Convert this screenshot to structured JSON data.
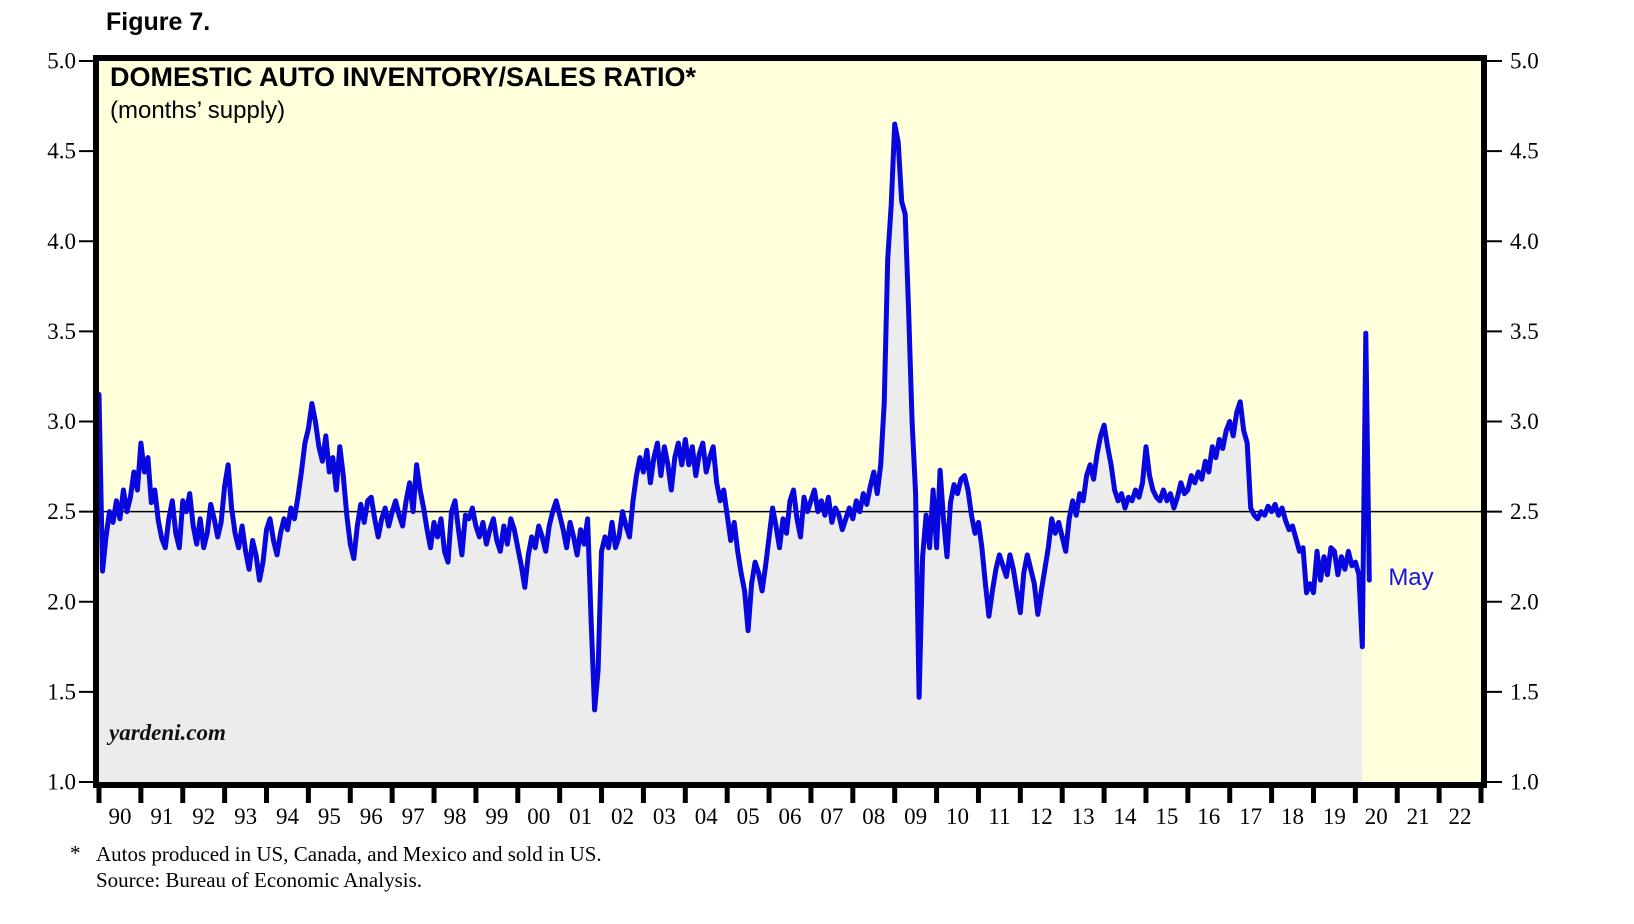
{
  "figure_label": "Figure 7.",
  "header": {
    "title": "DOMESTIC AUTO INVENTORY/SALES RATIO*",
    "subtitle": "(months’ supply)"
  },
  "watermark": "yardeni.com",
  "footnote": {
    "star": "*",
    "line1": "Autos produced in US, Canada, and Mexico and sold in US.",
    "line2": "Source: Bureau of Economic Analysis."
  },
  "colors": {
    "plot_background": "#FFFFDC",
    "area_fill": "#ECECEC",
    "line": "#0707DE",
    "annotation_text": "#1414E6",
    "axis_and_text": "#000000",
    "reference_line": "#000000"
  },
  "chart_data": {
    "type": "line",
    "title": "DOMESTIC AUTO INVENTORY/SALES RATIO*",
    "ylabel": "(months’ supply)",
    "ylim": [
      1.0,
      5.0
    ],
    "yticks": [
      5.0,
      4.5,
      4.0,
      3.5,
      3.0,
      2.5,
      2.0,
      1.5,
      1.0
    ],
    "ytick_labels": [
      "5.0",
      "4.5",
      "4.0",
      "3.5",
      "3.0",
      "2.5",
      "2.0",
      "1.5",
      "1.0"
    ],
    "x_tick_labels": [
      "90",
      "91",
      "92",
      "93",
      "94",
      "95",
      "96",
      "97",
      "98",
      "99",
      "00",
      "01",
      "02",
      "03",
      "04",
      "05",
      "06",
      "07",
      "08",
      "09",
      "10",
      "11",
      "12",
      "13",
      "14",
      "15",
      "16",
      "17",
      "18",
      "19",
      "20",
      "21",
      "22"
    ],
    "x_range_note": "monthly data Jan 1990 - May 2020; axis extends through 2022",
    "reference_line_y": 2.5,
    "grid": "off",
    "legend": "none",
    "annotation": {
      "text": "May",
      "value": 2.12
    },
    "fill_end_index": 362,
    "series": [
      {
        "name": "Domestic auto inventory/sales ratio",
        "start_year": 1990,
        "start_month": 1,
        "monthly_values": [
          3.15,
          2.17,
          2.36,
          2.5,
          2.44,
          2.56,
          2.46,
          2.62,
          2.5,
          2.58,
          2.72,
          2.62,
          2.88,
          2.72,
          2.8,
          2.55,
          2.62,
          2.45,
          2.35,
          2.3,
          2.46,
          2.56,
          2.38,
          2.3,
          2.56,
          2.5,
          2.6,
          2.42,
          2.32,
          2.46,
          2.3,
          2.38,
          2.54,
          2.46,
          2.36,
          2.44,
          2.64,
          2.76,
          2.52,
          2.38,
          2.3,
          2.42,
          2.28,
          2.18,
          2.34,
          2.26,
          2.12,
          2.22,
          2.4,
          2.46,
          2.34,
          2.26,
          2.38,
          2.46,
          2.4,
          2.52,
          2.46,
          2.58,
          2.72,
          2.88,
          2.96,
          3.1,
          3.0,
          2.86,
          2.78,
          2.92,
          2.72,
          2.8,
          2.62,
          2.86,
          2.7,
          2.48,
          2.32,
          2.24,
          2.42,
          2.54,
          2.44,
          2.56,
          2.58,
          2.46,
          2.36,
          2.46,
          2.52,
          2.42,
          2.5,
          2.56,
          2.48,
          2.42,
          2.56,
          2.66,
          2.5,
          2.76,
          2.62,
          2.52,
          2.4,
          2.3,
          2.44,
          2.36,
          2.46,
          2.28,
          2.22,
          2.5,
          2.56,
          2.4,
          2.26,
          2.48,
          2.46,
          2.52,
          2.42,
          2.36,
          2.44,
          2.32,
          2.4,
          2.46,
          2.34,
          2.28,
          2.42,
          2.32,
          2.46,
          2.4,
          2.3,
          2.2,
          2.08,
          2.26,
          2.36,
          2.3,
          2.42,
          2.36,
          2.28,
          2.42,
          2.5,
          2.56,
          2.48,
          2.4,
          2.3,
          2.44,
          2.36,
          2.26,
          2.4,
          2.32,
          2.46,
          1.9,
          1.4,
          1.62,
          2.28,
          2.36,
          2.3,
          2.44,
          2.3,
          2.36,
          2.5,
          2.42,
          2.36,
          2.56,
          2.7,
          2.8,
          2.72,
          2.84,
          2.66,
          2.8,
          2.88,
          2.7,
          2.86,
          2.76,
          2.62,
          2.8,
          2.88,
          2.76,
          2.9,
          2.76,
          2.86,
          2.7,
          2.82,
          2.88,
          2.72,
          2.8,
          2.86,
          2.66,
          2.56,
          2.62,
          2.48,
          2.34,
          2.44,
          2.28,
          2.16,
          2.06,
          1.84,
          2.1,
          2.22,
          2.16,
          2.06,
          2.2,
          2.36,
          2.52,
          2.42,
          2.3,
          2.46,
          2.38,
          2.56,
          2.62,
          2.46,
          2.36,
          2.58,
          2.5,
          2.56,
          2.62,
          2.5,
          2.56,
          2.48,
          2.58,
          2.44,
          2.52,
          2.48,
          2.4,
          2.46,
          2.52,
          2.46,
          2.56,
          2.5,
          2.6,
          2.54,
          2.64,
          2.72,
          2.6,
          2.76,
          3.1,
          3.9,
          4.2,
          4.65,
          4.55,
          4.22,
          4.15,
          3.6,
          3.0,
          2.6,
          1.47,
          2.25,
          2.48,
          2.3,
          2.62,
          2.3,
          2.73,
          2.45,
          2.25,
          2.55,
          2.65,
          2.6,
          2.68,
          2.7,
          2.62,
          2.48,
          2.38,
          2.44,
          2.3,
          2.1,
          1.92,
          2.06,
          2.18,
          2.26,
          2.2,
          2.14,
          2.26,
          2.18,
          2.06,
          1.94,
          2.16,
          2.26,
          2.18,
          2.1,
          1.93,
          2.06,
          2.18,
          2.3,
          2.46,
          2.38,
          2.44,
          2.36,
          2.28,
          2.46,
          2.56,
          2.48,
          2.6,
          2.56,
          2.7,
          2.76,
          2.68,
          2.82,
          2.92,
          2.98,
          2.86,
          2.76,
          2.62,
          2.56,
          2.6,
          2.52,
          2.58,
          2.56,
          2.62,
          2.58,
          2.66,
          2.86,
          2.7,
          2.62,
          2.58,
          2.56,
          2.62,
          2.56,
          2.6,
          2.52,
          2.58,
          2.66,
          2.6,
          2.62,
          2.7,
          2.66,
          2.72,
          2.68,
          2.78,
          2.72,
          2.86,
          2.8,
          2.9,
          2.85,
          2.95,
          3.0,
          2.92,
          3.05,
          3.11,
          2.95,
          2.88,
          2.52,
          2.48,
          2.46,
          2.5,
          2.48,
          2.53,
          2.5,
          2.54,
          2.48,
          2.52,
          2.45,
          2.4,
          2.42,
          2.35,
          2.28,
          2.3,
          2.05,
          2.1,
          2.05,
          2.28,
          2.12,
          2.25,
          2.15,
          2.3,
          2.28,
          2.15,
          2.25,
          2.18,
          2.28,
          2.2,
          2.22,
          2.15,
          1.75,
          3.49,
          2.12
        ]
      }
    ]
  }
}
